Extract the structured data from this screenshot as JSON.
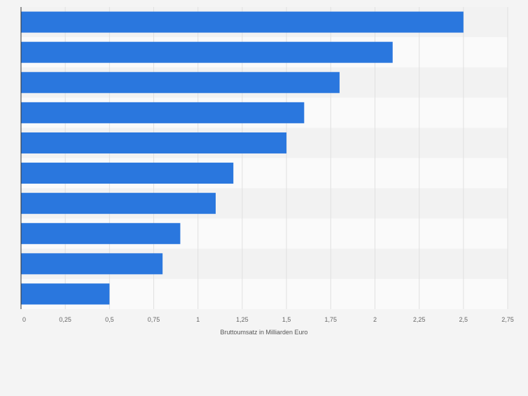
{
  "chart_data": {
    "type": "bar",
    "orientation": "horizontal",
    "categories": [
      "",
      "",
      "",
      "",
      "",
      "",
      "",
      "",
      "",
      ""
    ],
    "values": [
      2.5,
      2.1,
      1.8,
      1.6,
      1.5,
      1.2,
      1.1,
      0.9,
      0.8,
      0.5
    ],
    "title": "",
    "xlabel": "Bruttoumsatz in Milliarden Euro",
    "ylabel": "",
    "xlim": [
      0,
      2.75
    ],
    "x_ticks": [
      0,
      0.25,
      0.5,
      0.75,
      1,
      1.25,
      1.5,
      1.75,
      2,
      2.25,
      2.5,
      2.75
    ],
    "x_tick_labels": [
      "0",
      "0,25",
      "0,5",
      "0,75",
      "1",
      "1,25",
      "1,5",
      "1,75",
      "2",
      "2,25",
      "2,5",
      "2,75"
    ],
    "grid": true,
    "legend": "none",
    "colors": {
      "bar": "#2a77de",
      "background": "#f4f4f4",
      "band_light": "#fafafa",
      "band_dark": "#f2f2f2",
      "grid": "#e0e0e0",
      "axis": "#333333"
    }
  }
}
